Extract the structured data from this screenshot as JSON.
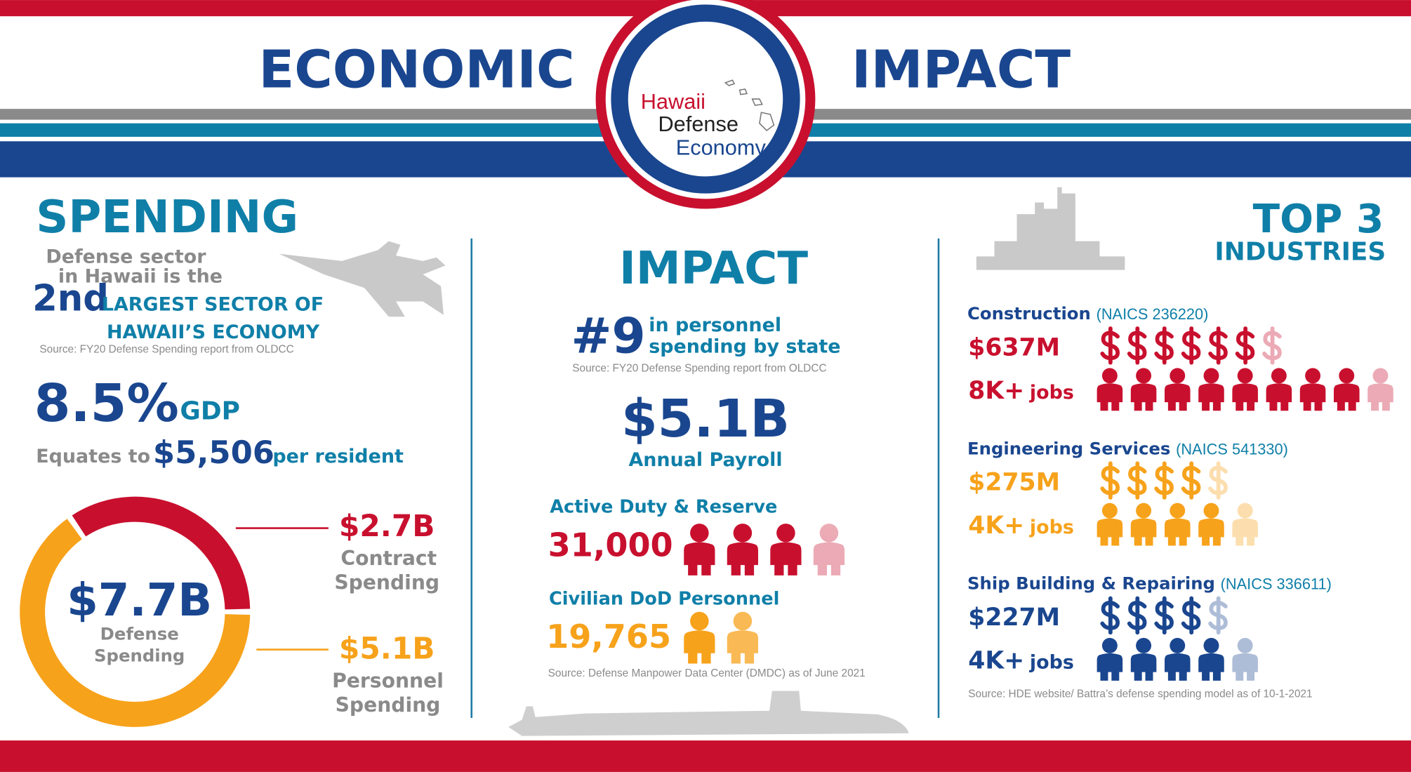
{
  "header": {
    "left": "ECONOMIC",
    "right": "IMPACT",
    "logo": [
      "Hawaii",
      "Defense",
      "Economy"
    ]
  },
  "spending": {
    "title": "SPENDING",
    "intro": [
      "Defense sector",
      "in Hawaii is the"
    ],
    "rank": "2nd",
    "rank_text": [
      "LARGEST SECTOR OF",
      "HAWAII’S ECONOMY"
    ],
    "source": "Source: FY20 Defense Spending report from OLDCC",
    "gdp": "8.5%",
    "gdp_label": "GDP",
    "per_resident": [
      "Equates to",
      "$5,506",
      "per resident"
    ],
    "donut": {
      "center_value": "$7.7B",
      "center_label": [
        "Defense",
        "Spending"
      ],
      "segments": [
        {
          "value": 2.7,
          "label": "$2.7B",
          "name": [
            "Contract",
            "Spending"
          ],
          "color": "#c8102e"
        },
        {
          "value": 5.1,
          "label": "$5.1B",
          "name": [
            "Personnel",
            "Spending"
          ],
          "color": "#f7a21b"
        }
      ]
    }
  },
  "impact": {
    "title": "IMPACT",
    "rank": "#9",
    "rank_text": [
      "in personnel",
      "spending by state"
    ],
    "source": "Source: FY20 Defense Spending report from OLDCC",
    "payroll": "$5.1B",
    "payroll_label": "Annual Payroll",
    "groups": [
      {
        "name": "Active Duty & Reserve",
        "count": "31,000",
        "color": "#c8102e"
      },
      {
        "name": "Civilian DoD Personnel",
        "count": "19,765",
        "color": "#f7a21b"
      }
    ],
    "group_source": "Source: Defense Manpower Data Center (DMDC) as of June 2021"
  },
  "industries": {
    "title": [
      "TOP 3",
      "INDUSTRIES"
    ],
    "items": [
      {
        "name": "Construction",
        "naics": "(NAICS 236220)",
        "amount": "$637M",
        "jobs": "8K+",
        "jobs_unit": "jobs",
        "color": "#c8102e"
      },
      {
        "name": "Engineering Services",
        "naics": "(NAICS 541330)",
        "amount": "$275M",
        "jobs": "4K+",
        "jobs_unit": "jobs",
        "color": "#f7a21b"
      },
      {
        "name": "Ship Building & Repairing",
        "naics": "(NAICS 336611)",
        "amount": "$227M",
        "jobs": "4K+",
        "jobs_unit": "jobs",
        "color": "#1a468f"
      }
    ],
    "source": "Source:  HDE website/ Battra’s defense spending model as of 10-1-2021"
  }
}
